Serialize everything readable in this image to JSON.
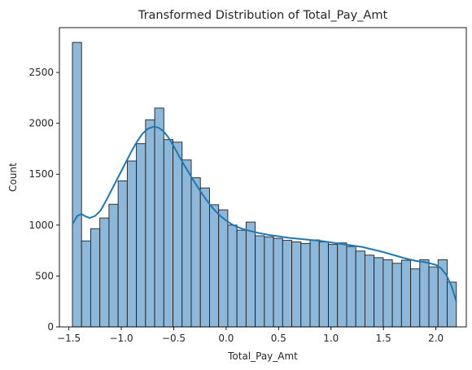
{
  "chart_data": {
    "type": "bar",
    "title": "Transformed Distribution of Total_Pay_Amt",
    "xlabel": "Total_Pay_Amt",
    "ylabel": "Count",
    "xlim": [
      -1.59,
      2.29
    ],
    "ylim": [
      0,
      2940
    ],
    "grid": false,
    "legend": "none",
    "bar_color": "#8db8d9",
    "kde_color": "#1f77b4",
    "xticks": [
      -1.5,
      -1.0,
      -0.5,
      0.0,
      0.5,
      1.0,
      1.5,
      2.0
    ],
    "xtick_labels": [
      "−1.5",
      "−1.0",
      "−0.5",
      "0.0",
      "0.5",
      "1.0",
      "1.5",
      "2.0"
    ],
    "yticks": [
      0,
      500,
      1000,
      1500,
      2000,
      2500
    ],
    "ytick_labels": [
      "0",
      "500",
      "1000",
      "1500",
      "2000",
      "2500"
    ],
    "histogram": {
      "bin_start": -1.466,
      "bin_end": 2.195,
      "values": [
        2795,
        845,
        965,
        1070,
        1205,
        1435,
        1630,
        1800,
        2035,
        2150,
        1840,
        1815,
        1640,
        1465,
        1365,
        1200,
        1150,
        1000,
        950,
        1030,
        895,
        885,
        870,
        850,
        835,
        820,
        855,
        835,
        810,
        825,
        790,
        745,
        705,
        680,
        660,
        625,
        655,
        570,
        660,
        590,
        660,
        440
      ]
    },
    "kde": {
      "x": [
        -1.466,
        -1.42,
        -1.38,
        -1.34,
        -1.3,
        -1.25,
        -1.2,
        -1.15,
        -1.1,
        -1.05,
        -1.0,
        -0.95,
        -0.9,
        -0.85,
        -0.8,
        -0.75,
        -0.7,
        -0.65,
        -0.6,
        -0.55,
        -0.5,
        -0.45,
        -0.4,
        -0.35,
        -0.3,
        -0.25,
        -0.2,
        -0.15,
        -0.1,
        -0.05,
        0.0,
        0.05,
        0.1,
        0.15,
        0.2,
        0.3,
        0.4,
        0.5,
        0.6,
        0.7,
        0.8,
        0.9,
        1.0,
        1.1,
        1.2,
        1.3,
        1.4,
        1.5,
        1.6,
        1.7,
        1.8,
        1.9,
        2.0,
        2.05,
        2.1,
        2.15,
        2.195
      ],
      "y": [
        1010,
        1090,
        1110,
        1085,
        1070,
        1090,
        1140,
        1230,
        1330,
        1430,
        1530,
        1630,
        1730,
        1820,
        1895,
        1945,
        1965,
        1960,
        1925,
        1860,
        1775,
        1680,
        1590,
        1505,
        1420,
        1340,
        1265,
        1195,
        1135,
        1085,
        1045,
        1010,
        985,
        965,
        950,
        925,
        905,
        890,
        875,
        865,
        855,
        845,
        830,
        815,
        800,
        785,
        760,
        735,
        705,
        675,
        650,
        635,
        610,
        575,
        510,
        400,
        250
      ]
    }
  }
}
